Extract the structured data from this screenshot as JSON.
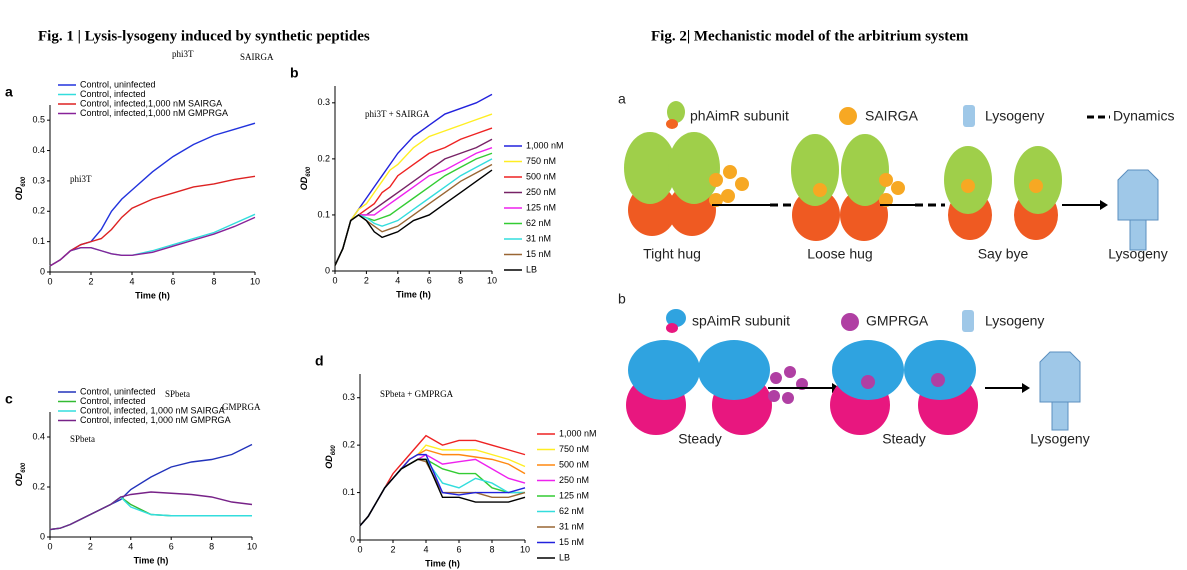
{
  "fig1_title": "Fig. 1 | Lysis-lysogeny induced by synthetic peptides",
  "fig2_title": "Fig. 2| Mechanistic model of the arbitrium system",
  "chart_data": [
    {
      "type": "line",
      "panel": "a",
      "annotations": [
        {
          "text": "phi3T",
          "color": "#33dd33"
        },
        {
          "text": "SAIRGA",
          "color": "#33dd33"
        },
        {
          "text": "phi3T",
          "color": "#33dd33"
        }
      ],
      "x_label": "Time (h)",
      "y_label": "OD",
      "y_label_sub": "600",
      "xlim": [
        0,
        10
      ],
      "ylim": [
        0,
        0.55
      ],
      "xticks": [
        0,
        2,
        4,
        6,
        8,
        10
      ],
      "yticks": [
        0,
        0.1,
        0.2,
        0.3,
        0.4,
        0.5
      ],
      "legend": "inside",
      "x": [
        0,
        0.5,
        1,
        1.5,
        2,
        2.5,
        3,
        3.5,
        4,
        5,
        6,
        7,
        8,
        9,
        10
      ],
      "series": [
        {
          "name": "Control, uninfected",
          "color": "#2233dd",
          "values": [
            0.02,
            0.04,
            0.07,
            0.09,
            0.1,
            0.14,
            0.2,
            0.24,
            0.27,
            0.33,
            0.38,
            0.42,
            0.45,
            0.47,
            0.49
          ]
        },
        {
          "name": "Control, infected",
          "color": "#33dddd",
          "values": [
            0.02,
            0.04,
            0.07,
            0.08,
            0.08,
            0.07,
            0.06,
            0.055,
            0.055,
            0.07,
            0.09,
            0.11,
            0.13,
            0.16,
            0.19
          ]
        },
        {
          "name": "Control, infected,1,000 nM SAIRGA",
          "color": "#dd2222",
          "values": [
            0.02,
            0.04,
            0.07,
            0.09,
            0.1,
            0.11,
            0.14,
            0.18,
            0.21,
            0.24,
            0.26,
            0.28,
            0.29,
            0.305,
            0.315
          ]
        },
        {
          "name": "Control, infected,1,000 nM GMPRGA",
          "color": "#882299",
          "values": [
            0.02,
            0.04,
            0.07,
            0.08,
            0.08,
            0.07,
            0.06,
            0.055,
            0.055,
            0.065,
            0.085,
            0.105,
            0.125,
            0.15,
            0.18
          ]
        }
      ]
    },
    {
      "type": "line",
      "panel": "b",
      "annotations": [
        {
          "text": "phi3T + SAIRGA",
          "color": "#33dd33"
        }
      ],
      "x_label": "Time (h)",
      "y_label": "OD",
      "y_label_sub": "600",
      "xlim": [
        0,
        10
      ],
      "ylim": [
        0,
        0.33
      ],
      "xticks": [
        0,
        2,
        4,
        6,
        8,
        10
      ],
      "yticks": [
        0,
        0.1,
        0.2,
        0.3
      ],
      "legend": "right",
      "x": [
        0,
        0.5,
        1,
        1.5,
        2,
        2.5,
        3,
        3.5,
        4,
        5,
        6,
        7,
        8,
        9,
        10
      ],
      "series": [
        {
          "name": "1,000 nM",
          "color": "#2222dd",
          "values": [
            0.01,
            0.04,
            0.09,
            0.11,
            0.13,
            0.15,
            0.17,
            0.19,
            0.21,
            0.24,
            0.26,
            0.28,
            0.29,
            0.3,
            0.315
          ]
        },
        {
          "name": "750 nM",
          "color": "#ffee22",
          "values": [
            0.01,
            0.04,
            0.09,
            0.11,
            0.12,
            0.14,
            0.16,
            0.18,
            0.19,
            0.22,
            0.24,
            0.25,
            0.26,
            0.27,
            0.28
          ]
        },
        {
          "name": "500 nM",
          "color": "#ee2222",
          "values": [
            0.01,
            0.04,
            0.09,
            0.1,
            0.11,
            0.12,
            0.14,
            0.15,
            0.17,
            0.19,
            0.21,
            0.22,
            0.235,
            0.245,
            0.255
          ]
        },
        {
          "name": "250 nM",
          "color": "#772266",
          "values": [
            0.01,
            0.04,
            0.09,
            0.1,
            0.1,
            0.11,
            0.12,
            0.13,
            0.14,
            0.16,
            0.18,
            0.2,
            0.21,
            0.22,
            0.235
          ]
        },
        {
          "name": "125 nM",
          "color": "#ee22ee",
          "values": [
            0.01,
            0.04,
            0.09,
            0.1,
            0.1,
            0.1,
            0.11,
            0.12,
            0.13,
            0.15,
            0.17,
            0.18,
            0.195,
            0.21,
            0.22
          ]
        },
        {
          "name": "62 nM",
          "color": "#33cc33",
          "values": [
            0.01,
            0.04,
            0.09,
            0.1,
            0.095,
            0.09,
            0.095,
            0.1,
            0.11,
            0.13,
            0.15,
            0.17,
            0.185,
            0.2,
            0.21
          ]
        },
        {
          "name": "31 nM",
          "color": "#33dddd",
          "values": [
            0.01,
            0.04,
            0.09,
            0.1,
            0.095,
            0.085,
            0.08,
            0.085,
            0.09,
            0.11,
            0.13,
            0.15,
            0.17,
            0.185,
            0.2
          ]
        },
        {
          "name": "15 nM",
          "color": "#996633",
          "values": [
            0.01,
            0.04,
            0.09,
            0.1,
            0.09,
            0.08,
            0.07,
            0.075,
            0.08,
            0.1,
            0.12,
            0.14,
            0.16,
            0.175,
            0.19
          ]
        },
        {
          "name": "LB",
          "color": "#000000",
          "values": [
            0.01,
            0.04,
            0.09,
            0.1,
            0.09,
            0.07,
            0.06,
            0.065,
            0.07,
            0.09,
            0.1,
            0.12,
            0.14,
            0.16,
            0.18
          ]
        }
      ]
    },
    {
      "type": "line",
      "panel": "c",
      "annotations": [
        {
          "text": "SPbeta",
          "color": "#ee2222"
        },
        {
          "text": "GMPRGA",
          "color": "#ee2222"
        },
        {
          "text": "SPbeta",
          "color": "#ee2222"
        }
      ],
      "x_label": "Time (h)",
      "y_label": "OD",
      "y_label_sub": "600",
      "xlim": [
        0,
        10
      ],
      "ylim": [
        0,
        0.5
      ],
      "xticks": [
        0,
        2,
        4,
        6,
        8,
        10
      ],
      "yticks": [
        0,
        0.2,
        0.4
      ],
      "legend": "inside",
      "x": [
        0,
        0.5,
        1,
        1.5,
        2,
        2.5,
        3,
        3.5,
        4,
        5,
        6,
        7,
        8,
        9,
        10
      ],
      "series": [
        {
          "name": "Control, uninfected",
          "color": "#2233bb",
          "values": [
            0.03,
            0.035,
            0.05,
            0.07,
            0.09,
            0.11,
            0.13,
            0.15,
            0.19,
            0.24,
            0.28,
            0.3,
            0.31,
            0.33,
            0.37
          ]
        },
        {
          "name": "Control, infected",
          "color": "#33bb33",
          "values": [
            0.03,
            0.035,
            0.05,
            0.07,
            0.09,
            0.11,
            0.13,
            0.16,
            0.13,
            0.09,
            0.085,
            0.085,
            0.085,
            0.085,
            0.085
          ]
        },
        {
          "name": "Control, infected, 1,000 nM SAIRGA",
          "color": "#33dddd",
          "values": [
            0.03,
            0.035,
            0.05,
            0.07,
            0.09,
            0.11,
            0.13,
            0.16,
            0.12,
            0.09,
            0.085,
            0.085,
            0.085,
            0.085,
            0.085
          ]
        },
        {
          "name": "Control, infected, 1,000 nM GMPRGA",
          "color": "#772288",
          "values": [
            0.03,
            0.035,
            0.05,
            0.07,
            0.09,
            0.11,
            0.13,
            0.16,
            0.17,
            0.18,
            0.175,
            0.17,
            0.16,
            0.14,
            0.13
          ]
        }
      ]
    },
    {
      "type": "line",
      "panel": "d",
      "annotations": [
        {
          "text": "SPbeta + GMPRGA",
          "color": "#ee2222"
        }
      ],
      "x_label": "Time (h)",
      "y_label": "OD",
      "y_label_sub": "600",
      "xlim": [
        0,
        10
      ],
      "ylim": [
        0,
        0.35
      ],
      "xticks": [
        0,
        2,
        4,
        6,
        8,
        10
      ],
      "yticks": [
        0,
        0.1,
        0.2,
        0.3
      ],
      "legend": "right",
      "x": [
        0,
        0.5,
        1,
        1.5,
        2,
        2.5,
        3,
        3.5,
        4,
        5,
        6,
        7,
        8,
        9,
        10
      ],
      "series": [
        {
          "name": "1,000 nM",
          "color": "#ee2222",
          "values": [
            0.03,
            0.05,
            0.08,
            0.11,
            0.14,
            0.16,
            0.18,
            0.2,
            0.22,
            0.2,
            0.21,
            0.21,
            0.2,
            0.19,
            0.18
          ]
        },
        {
          "name": "750 nM",
          "color": "#ffee22",
          "values": [
            0.03,
            0.05,
            0.08,
            0.11,
            0.13,
            0.15,
            0.17,
            0.18,
            0.2,
            0.19,
            0.19,
            0.19,
            0.18,
            0.17,
            0.155
          ]
        },
        {
          "name": "500 nM",
          "color": "#ff8811",
          "values": [
            0.03,
            0.05,
            0.08,
            0.11,
            0.13,
            0.15,
            0.17,
            0.18,
            0.19,
            0.18,
            0.18,
            0.175,
            0.17,
            0.16,
            0.14
          ]
        },
        {
          "name": "250 nM",
          "color": "#ee22ee",
          "values": [
            0.03,
            0.05,
            0.08,
            0.11,
            0.13,
            0.15,
            0.16,
            0.17,
            0.18,
            0.16,
            0.165,
            0.17,
            0.15,
            0.13,
            0.12
          ]
        },
        {
          "name": "125 nM",
          "color": "#33cc33",
          "values": [
            0.03,
            0.05,
            0.08,
            0.11,
            0.13,
            0.15,
            0.16,
            0.17,
            0.17,
            0.15,
            0.14,
            0.14,
            0.11,
            0.1,
            0.1
          ]
        },
        {
          "name": "62 nM",
          "color": "#33dddd",
          "values": [
            0.03,
            0.05,
            0.08,
            0.11,
            0.13,
            0.15,
            0.16,
            0.17,
            0.17,
            0.12,
            0.11,
            0.13,
            0.12,
            0.1,
            0.1
          ]
        },
        {
          "name": "31 nM",
          "color": "#996633",
          "values": [
            0.03,
            0.05,
            0.08,
            0.11,
            0.13,
            0.15,
            0.16,
            0.17,
            0.165,
            0.1,
            0.1,
            0.1,
            0.09,
            0.09,
            0.1
          ]
        },
        {
          "name": "15 nM",
          "color": "#2222dd",
          "values": [
            0.03,
            0.05,
            0.08,
            0.11,
            0.13,
            0.15,
            0.17,
            0.18,
            0.18,
            0.1,
            0.095,
            0.1,
            0.1,
            0.1,
            0.11
          ]
        },
        {
          "name": "LB",
          "color": "#000000",
          "values": [
            0.03,
            0.05,
            0.08,
            0.11,
            0.13,
            0.15,
            0.16,
            0.17,
            0.17,
            0.09,
            0.09,
            0.08,
            0.08,
            0.08,
            0.09
          ]
        }
      ]
    }
  ],
  "diagram": {
    "a": {
      "label": "a",
      "legend": [
        "phAimR subunit",
        "SAIRGA",
        "Lysogeny",
        "Dynamics"
      ],
      "states": [
        "Tight hug",
        "Loose hug",
        "Say bye",
        "Lysogeny"
      ]
    },
    "b": {
      "label": "b",
      "legend": [
        "spAimR subunit",
        "GMPRGA",
        "Lysogeny"
      ],
      "states": [
        "Steady",
        "Steady",
        "Lysogeny"
      ]
    }
  }
}
